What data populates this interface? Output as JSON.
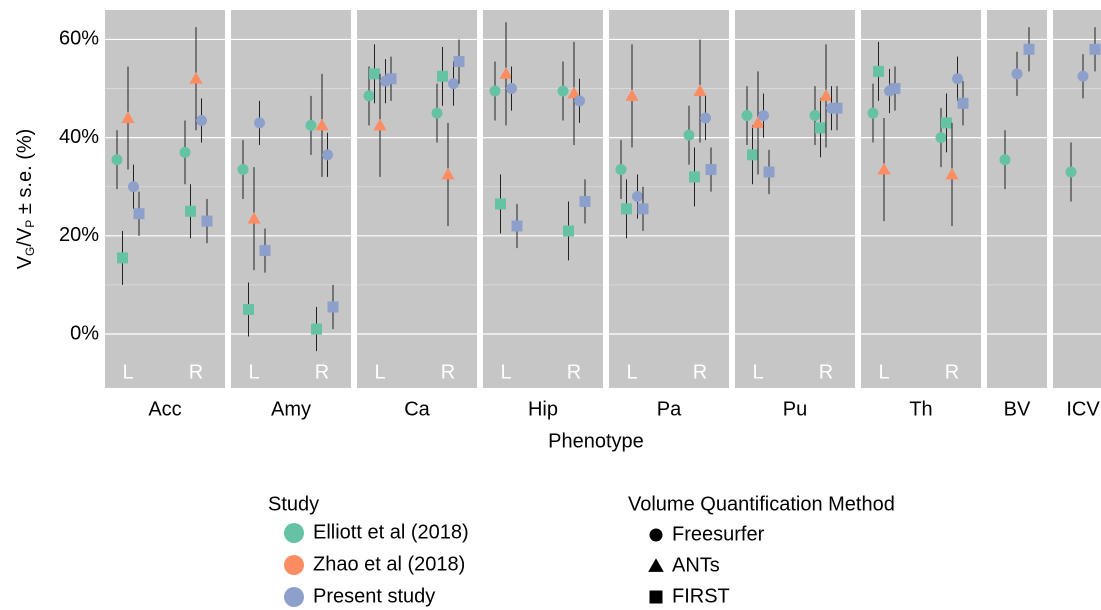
{
  "chart_data": {
    "type": "faceted-errorbar",
    "y_label": [
      "V",
      "G",
      "/V",
      "P",
      " ± s.e. (%)"
    ],
    "x_label": "Phenotype",
    "ylim": [
      -11,
      66
    ],
    "yticks": [
      {
        "value": 0,
        "label": "0%"
      },
      {
        "value": 20,
        "label": "20%"
      },
      {
        "value": 40,
        "label": "40%"
      },
      {
        "value": 60,
        "label": "60%"
      }
    ],
    "minor_grid": [
      10,
      30,
      50
    ],
    "grid": true,
    "legend_title": "Study",
    "series": [
      {
        "name": "Elliott et al (2018)",
        "color": "#66c2a5"
      },
      {
        "name": "Zhao et al (2018)",
        "color": "#fc8d62"
      },
      {
        "name": "Present study",
        "color": "#8da0cb"
      }
    ],
    "method_legend_title": "Volume Quantification Method",
    "methods": [
      {
        "name": "Freesurfer",
        "shape": "circle"
      },
      {
        "name": "ANTs",
        "shape": "triangle"
      },
      {
        "name": "FIRST",
        "shape": "square"
      }
    ],
    "facets": [
      {
        "label": "Acc",
        "panels": [
          {
            "label": "L",
            "points": [
              {
                "series": 0,
                "method": 0,
                "value": 35.5,
                "error": 6
              },
              {
                "series": 0,
                "method": 2,
                "value": 15.5,
                "error": 5.5
              },
              {
                "series": 1,
                "method": 1,
                "value": 44,
                "error": 10.5
              },
              {
                "series": 2,
                "method": 0,
                "value": 30,
                "error": 4.5
              },
              {
                "series": 2,
                "method": 2,
                "value": 24.5,
                "error": 4.5
              }
            ]
          },
          {
            "label": "R",
            "points": [
              {
                "series": 0,
                "method": 0,
                "value": 37,
                "error": 6.5
              },
              {
                "series": 0,
                "method": 2,
                "value": 25,
                "error": 5.5
              },
              {
                "series": 1,
                "method": 1,
                "value": 52,
                "error": 10.5
              },
              {
                "series": 2,
                "method": 0,
                "value": 43.5,
                "error": 4.5
              },
              {
                "series": 2,
                "method": 2,
                "value": 23,
                "error": 4.5
              }
            ]
          }
        ]
      },
      {
        "label": "Amy",
        "panels": [
          {
            "label": "L",
            "points": [
              {
                "series": 0,
                "method": 0,
                "value": 33.5,
                "error": 6
              },
              {
                "series": 0,
                "method": 2,
                "value": 5,
                "error": 5.5
              },
              {
                "series": 1,
                "method": 1,
                "value": 23.5,
                "error": 10.5
              },
              {
                "series": 2,
                "method": 0,
                "value": 43,
                "error": 4.5
              },
              {
                "series": 2,
                "method": 2,
                "value": 17,
                "error": 4.5
              }
            ]
          },
          {
            "label": "R",
            "points": [
              {
                "series": 0,
                "method": 0,
                "value": 42.5,
                "error": 6
              },
              {
                "series": 0,
                "method": 2,
                "value": 1,
                "error": 4.5
              },
              {
                "series": 1,
                "method": 1,
                "value": 42.5,
                "error": 10.5
              },
              {
                "series": 2,
                "method": 0,
                "value": 36.5,
                "error": 4.5
              },
              {
                "series": 2,
                "method": 2,
                "value": 5.5,
                "error": 4.5
              }
            ]
          }
        ]
      },
      {
        "label": "Ca",
        "panels": [
          {
            "label": "L",
            "points": [
              {
                "series": 0,
                "method": 0,
                "value": 48.5,
                "error": 6
              },
              {
                "series": 0,
                "method": 2,
                "value": 53,
                "error": 6
              },
              {
                "series": 1,
                "method": 1,
                "value": 42.5,
                "error": 10.5
              },
              {
                "series": 2,
                "method": 0,
                "value": 51.5,
                "error": 4.5
              },
              {
                "series": 2,
                "method": 2,
                "value": 52,
                "error": 4.5
              }
            ]
          },
          {
            "label": "R",
            "points": [
              {
                "series": 0,
                "method": 0,
                "value": 45,
                "error": 6
              },
              {
                "series": 0,
                "method": 2,
                "value": 52.5,
                "error": 6
              },
              {
                "series": 1,
                "method": 1,
                "value": 32.5,
                "error": 10.5
              },
              {
                "series": 2,
                "method": 0,
                "value": 51,
                "error": 4.5
              },
              {
                "series": 2,
                "method": 2,
                "value": 55.5,
                "error": 4.5
              }
            ]
          }
        ]
      },
      {
        "label": "Hip",
        "panels": [
          {
            "label": "L",
            "points": [
              {
                "series": 0,
                "method": 0,
                "value": 49.5,
                "error": 6
              },
              {
                "series": 0,
                "method": 2,
                "value": 26.5,
                "error": 6
              },
              {
                "series": 1,
                "method": 1,
                "value": 53,
                "error": 10.5
              },
              {
                "series": 2,
                "method": 0,
                "value": 50,
                "error": 4.5
              },
              {
                "series": 2,
                "method": 2,
                "value": 22,
                "error": 4.5
              }
            ]
          },
          {
            "label": "R",
            "points": [
              {
                "series": 0,
                "method": 0,
                "value": 49.5,
                "error": 6
              },
              {
                "series": 0,
                "method": 2,
                "value": 21,
                "error": 6
              },
              {
                "series": 1,
                "method": 1,
                "value": 49,
                "error": 10.5
              },
              {
                "series": 2,
                "method": 0,
                "value": 47.5,
                "error": 4.5
              },
              {
                "series": 2,
                "method": 2,
                "value": 27,
                "error": 4.5
              }
            ]
          }
        ]
      },
      {
        "label": "Pa",
        "panels": [
          {
            "label": "L",
            "points": [
              {
                "series": 0,
                "method": 0,
                "value": 33.5,
                "error": 6
              },
              {
                "series": 0,
                "method": 2,
                "value": 25.5,
                "error": 6
              },
              {
                "series": 1,
                "method": 1,
                "value": 48.5,
                "error": 10.5
              },
              {
                "series": 2,
                "method": 0,
                "value": 28,
                "error": 4.5
              },
              {
                "series": 2,
                "method": 2,
                "value": 25.5,
                "error": 4.5
              }
            ]
          },
          {
            "label": "R",
            "points": [
              {
                "series": 0,
                "method": 0,
                "value": 40.5,
                "error": 6
              },
              {
                "series": 0,
                "method": 2,
                "value": 32,
                "error": 6
              },
              {
                "series": 1,
                "method": 1,
                "value": 49.5,
                "error": 10.5
              },
              {
                "series": 2,
                "method": 0,
                "value": 44,
                "error": 4.5
              },
              {
                "series": 2,
                "method": 2,
                "value": 33.5,
                "error": 4.5
              }
            ]
          }
        ]
      },
      {
        "label": "Pu",
        "panels": [
          {
            "label": "L",
            "points": [
              {
                "series": 0,
                "method": 0,
                "value": 44.5,
                "error": 6
              },
              {
                "series": 0,
                "method": 2,
                "value": 36.5,
                "error": 6
              },
              {
                "series": 1,
                "method": 1,
                "value": 43,
                "error": 10.5
              },
              {
                "series": 2,
                "method": 0,
                "value": 44.5,
                "error": 4.5
              },
              {
                "series": 2,
                "method": 2,
                "value": 33,
                "error": 4.5
              }
            ]
          },
          {
            "label": "R",
            "points": [
              {
                "series": 0,
                "method": 0,
                "value": 44.5,
                "error": 6
              },
              {
                "series": 0,
                "method": 2,
                "value": 42,
                "error": 6
              },
              {
                "series": 1,
                "method": 1,
                "value": 48.5,
                "error": 10.5
              },
              {
                "series": 2,
                "method": 0,
                "value": 46,
                "error": 4.5
              },
              {
                "series": 2,
                "method": 2,
                "value": 46,
                "error": 4.5
              }
            ]
          }
        ]
      },
      {
        "label": "Th",
        "panels": [
          {
            "label": "L",
            "points": [
              {
                "series": 0,
                "method": 0,
                "value": 45,
                "error": 6
              },
              {
                "series": 0,
                "method": 2,
                "value": 53.5,
                "error": 6
              },
              {
                "series": 1,
                "method": 1,
                "value": 33.5,
                "error": 10.5
              },
              {
                "series": 2,
                "method": 0,
                "value": 49.5,
                "error": 4.5
              },
              {
                "series": 2,
                "method": 2,
                "value": 50,
                "error": 4.5
              }
            ]
          },
          {
            "label": "R",
            "points": [
              {
                "series": 0,
                "method": 0,
                "value": 40,
                "error": 6
              },
              {
                "series": 0,
                "method": 2,
                "value": 43,
                "error": 6
              },
              {
                "series": 1,
                "method": 1,
                "value": 32.5,
                "error": 10.5
              },
              {
                "series": 2,
                "method": 0,
                "value": 52,
                "error": 4.5
              },
              {
                "series": 2,
                "method": 2,
                "value": 47,
                "error": 4.5
              }
            ]
          }
        ]
      },
      {
        "label": "BV",
        "panels": [
          {
            "points": [
              {
                "series": 0,
                "method": 0,
                "value": 35.5,
                "error": 6
              },
              {
                "series": 2,
                "method": 0,
                "value": 53,
                "error": 4.5
              },
              {
                "series": 2,
                "method": 2,
                "value": 58,
                "error": 4.5
              }
            ]
          }
        ]
      },
      {
        "label": "ICV",
        "panels": [
          {
            "points": [
              {
                "series": 0,
                "method": 0,
                "value": 33,
                "error": 6
              },
              {
                "series": 2,
                "method": 0,
                "value": 52.5,
                "error": 4.5
              },
              {
                "series": 2,
                "method": 2,
                "value": 58,
                "error": 4.5
              }
            ]
          }
        ]
      }
    ]
  }
}
